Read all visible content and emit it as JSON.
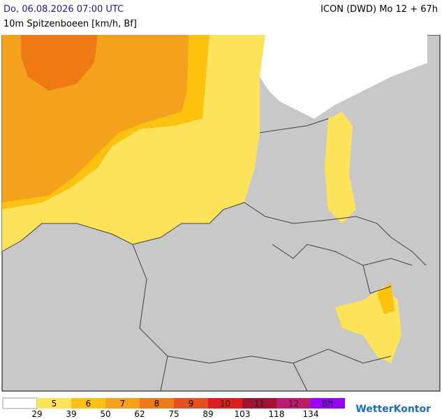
{
  "header": {
    "date": "Do, 06.08.2026 07:00 UTC",
    "parameter": "10m Spitzenboeen [km/h, Bf]",
    "model": "ICON (DWD) Mo 12 + 67h"
  },
  "legend": {
    "classes": [
      {
        "label": "5",
        "color": "#fde35a"
      },
      {
        "label": "6",
        "color": "#fcc20f"
      },
      {
        "label": "7",
        "color": "#f4a21c"
      },
      {
        "label": "8",
        "color": "#ef7a15"
      },
      {
        "label": "9",
        "color": "#e65020"
      },
      {
        "label": "10",
        "color": "#dc1e1e"
      },
      {
        "label": "11",
        "color": "#a01432"
      },
      {
        "label": "12",
        "color": "#c01a6e"
      },
      {
        "label": "Bft",
        "color": "#9a00ff"
      }
    ],
    "bounds": [
      29,
      39,
      50,
      62,
      75,
      89,
      103,
      118,
      134
    ]
  },
  "logo": "WetterKontor"
}
